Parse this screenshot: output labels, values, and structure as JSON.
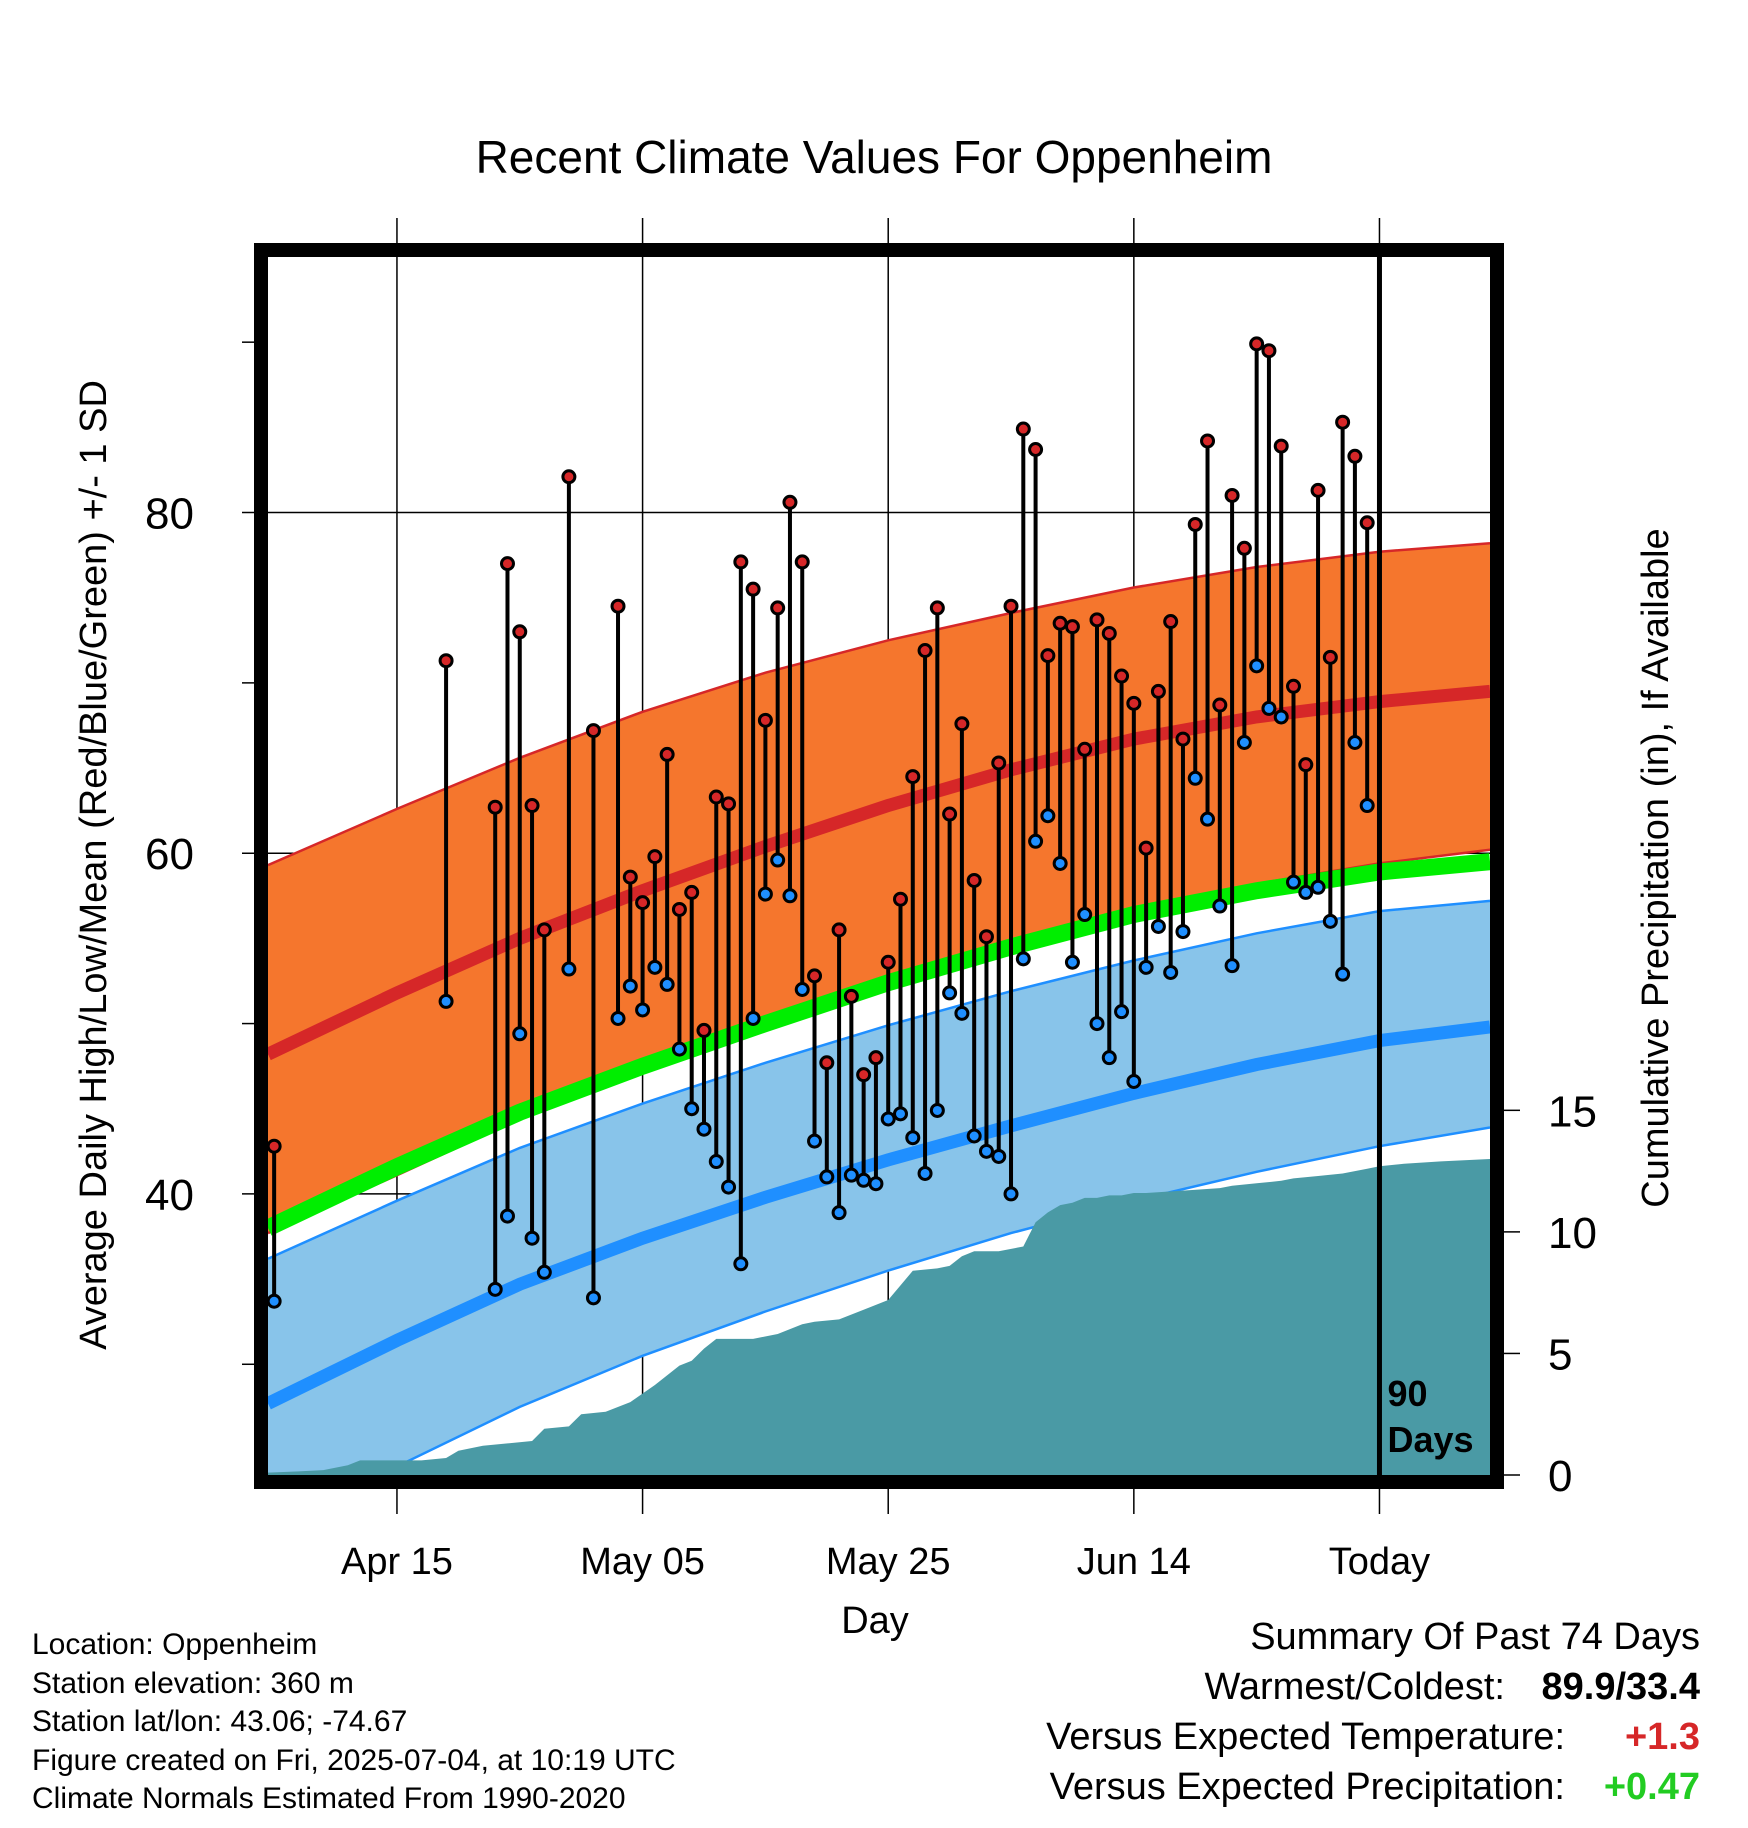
{
  "chart_data": {
    "type": "line",
    "title": "Recent Climate Values For Oppenheim",
    "xlabel": "Day",
    "ylabel": "Average Daily High/Low/Mean (Red/Blue/Green) +/- 1 SD",
    "y2label": "Cumulative Precipitation (in), If Available",
    "x_tick_labels": [
      "Apr 15",
      "May 05",
      "May 25",
      "Jun 14",
      "Today"
    ],
    "x_tick_days": [
      10,
      30,
      50,
      70,
      90
    ],
    "xlim": [
      -0.5,
      99
    ],
    "ylim": [
      23.5,
      95
    ],
    "y_ticks": [
      40,
      60,
      80
    ],
    "y_minor_ticks": [
      30,
      50,
      70,
      90
    ],
    "y2_ticks": [
      0,
      5,
      10,
      15
    ],
    "y2lim": [
      0,
      50.1
    ],
    "today_marker": {
      "day": 90,
      "label_top": "90",
      "label_bottom": "Days"
    },
    "normals": {
      "days": [
        -0.5,
        10,
        20,
        30,
        40,
        50,
        60,
        70,
        80,
        90,
        99
      ],
      "high_mean": [
        48.2,
        51.8,
        55.0,
        57.8,
        60.4,
        62.8,
        64.9,
        66.7,
        68.0,
        68.9,
        69.5
      ],
      "high_upper": [
        59.3,
        62.6,
        65.6,
        68.3,
        70.6,
        72.5,
        74.1,
        75.6,
        76.8,
        77.7,
        78.2
      ],
      "high_lower": [
        37.7,
        41.1,
        44.4,
        47.3,
        49.9,
        52.3,
        54.6,
        56.6,
        58.2,
        59.4,
        60.2
      ],
      "mean": [
        38.0,
        41.6,
        44.8,
        47.5,
        50.0,
        52.4,
        54.5,
        56.4,
        57.8,
        58.9,
        59.5
      ],
      "low_mean": [
        27.7,
        31.4,
        34.7,
        37.4,
        39.8,
        42.0,
        44.0,
        45.9,
        47.6,
        49.0,
        49.8
      ],
      "low_upper": [
        36.2,
        39.6,
        42.7,
        45.3,
        47.7,
        49.9,
        51.9,
        53.7,
        55.3,
        56.6,
        57.2
      ],
      "low_lower": [
        22.0,
        24.0,
        27.5,
        30.5,
        33.1,
        35.5,
        37.7,
        39.6,
        41.3,
        42.8,
        43.9
      ]
    },
    "series": [
      {
        "name": "Daily High",
        "color": "#d62728",
        "days": [
          0,
          14,
          18,
          19,
          20,
          21,
          22,
          24,
          26,
          28,
          29,
          30,
          31,
          32,
          33,
          34,
          35,
          36,
          37,
          38,
          39,
          40,
          41,
          42,
          43,
          44,
          45,
          46,
          47,
          48,
          49,
          50,
          51,
          52,
          53,
          54,
          55,
          56,
          57,
          58,
          59,
          60,
          61,
          62,
          63,
          64,
          65,
          66,
          67,
          68,
          69,
          70,
          71,
          72,
          73,
          74,
          75,
          76,
          77,
          78,
          79,
          80,
          81,
          82,
          83,
          84,
          85,
          86,
          87,
          88,
          89
        ],
        "values": [
          42.8,
          71.3,
          62.7,
          77.0,
          73.0,
          62.8,
          55.5,
          82.1,
          67.2,
          74.5,
          58.6,
          57.1,
          59.8,
          65.8,
          56.7,
          57.7,
          49.6,
          63.3,
          62.9,
          77.1,
          75.5,
          67.8,
          74.4,
          80.6,
          77.1,
          52.8,
          47.7,
          55.5,
          51.6,
          47.0,
          48.0,
          53.6,
          57.3,
          64.5,
          71.9,
          74.4,
          62.3,
          67.6,
          58.4,
          55.1,
          65.3,
          74.5,
          84.9,
          83.7,
          71.6,
          73.5,
          73.3,
          66.1,
          73.7,
          72.9,
          70.4,
          68.8,
          60.3,
          69.5,
          73.6,
          66.7,
          79.3,
          84.2,
          68.7,
          81.0,
          77.9,
          89.9,
          89.5,
          83.9,
          69.8,
          65.2,
          81.3,
          71.5,
          85.3,
          83.3,
          79.4
        ]
      },
      {
        "name": "Daily Low",
        "color": "#1f8fff",
        "days": [
          0,
          14,
          18,
          19,
          20,
          21,
          22,
          24,
          26,
          28,
          29,
          30,
          31,
          32,
          33,
          34,
          35,
          36,
          37,
          38,
          39,
          40,
          41,
          42,
          43,
          44,
          45,
          46,
          47,
          48,
          49,
          50,
          51,
          52,
          53,
          54,
          55,
          56,
          57,
          58,
          59,
          60,
          61,
          62,
          63,
          64,
          65,
          66,
          67,
          68,
          69,
          70,
          71,
          72,
          73,
          74,
          75,
          76,
          77,
          78,
          79,
          80,
          81,
          82,
          83,
          84,
          85,
          86,
          87,
          88,
          89
        ],
        "values": [
          33.7,
          51.3,
          34.4,
          38.7,
          49.4,
          37.4,
          35.4,
          53.2,
          33.9,
          50.3,
          52.2,
          50.8,
          53.3,
          52.3,
          48.5,
          45.0,
          43.8,
          41.9,
          40.4,
          35.9,
          50.3,
          57.6,
          59.6,
          57.5,
          52.0,
          43.1,
          41.0,
          38.9,
          41.1,
          40.8,
          40.6,
          44.4,
          44.7,
          43.3,
          41.2,
          44.9,
          51.8,
          50.6,
          43.4,
          42.5,
          42.2,
          40.0,
          53.8,
          60.7,
          62.2,
          59.4,
          53.6,
          56.4,
          50.0,
          48.0,
          50.7,
          46.6,
          53.3,
          55.7,
          53.0,
          55.4,
          64.4,
          62.0,
          56.9,
          53.4,
          66.5,
          71.0,
          68.5,
          68.0,
          58.3,
          57.7,
          58.0,
          56.0,
          52.9,
          66.5,
          62.8
        ]
      },
      {
        "name": "Cumulative Precipitation",
        "color": "#4a9aa5",
        "axis": "y2",
        "days": [
          -0.5,
          2,
          4,
          6,
          7,
          9,
          12,
          14,
          15,
          17,
          19,
          21,
          22,
          24,
          25,
          27,
          29,
          31,
          33,
          34,
          35,
          36,
          39,
          41,
          43,
          44,
          46,
          48,
          50,
          51,
          52,
          54,
          55,
          56,
          57,
          59,
          61,
          62,
          63,
          64,
          65,
          66,
          67,
          68,
          69,
          70,
          71,
          74,
          77,
          78,
          80,
          82,
          83,
          85,
          87,
          88,
          89,
          90,
          92,
          95,
          99
        ],
        "values": [
          0.1,
          0.15,
          0.2,
          0.4,
          0.6,
          0.6,
          0.6,
          0.7,
          1.0,
          1.2,
          1.3,
          1.4,
          1.9,
          2.0,
          2.5,
          2.6,
          3.0,
          3.7,
          4.5,
          4.7,
          5.2,
          5.6,
          5.6,
          5.8,
          6.2,
          6.3,
          6.4,
          6.8,
          7.2,
          7.8,
          8.4,
          8.5,
          8.6,
          9.0,
          9.2,
          9.2,
          9.4,
          10.4,
          10.8,
          11.1,
          11.2,
          11.4,
          11.4,
          11.5,
          11.5,
          11.6,
          11.6,
          11.7,
          11.8,
          11.9,
          12.0,
          12.1,
          12.2,
          12.3,
          12.4,
          12.5,
          12.6,
          12.7,
          12.8,
          12.9,
          13.0
        ]
      }
    ]
  },
  "footer": {
    "location": "Location: Oppenheim",
    "elevation": "Station elevation: 360 m",
    "latlon": "Station lat/lon: 43.06; -74.67",
    "created": "Figure created on Fri, 2025-07-04, at 10:19 UTC",
    "normals": "Climate Normals Estimated From 1990-2020"
  },
  "summary": {
    "title": "Summary Of Past 74 Days",
    "warmest_label": "Warmest/Coldest:",
    "warmest_value": "89.9/33.4",
    "temp_label": "Versus Expected Temperature:",
    "temp_value": "+1.3",
    "precip_label": "Versus Expected Precipitation:",
    "precip_value": "+0.47"
  },
  "colors": {
    "high_band": "#f5762d",
    "high_line": "#d62728",
    "mean_line": "#00ee00",
    "low_band": "#88c4ea",
    "low_line": "#1f8fff",
    "precip_fill": "#4a9aa5"
  }
}
